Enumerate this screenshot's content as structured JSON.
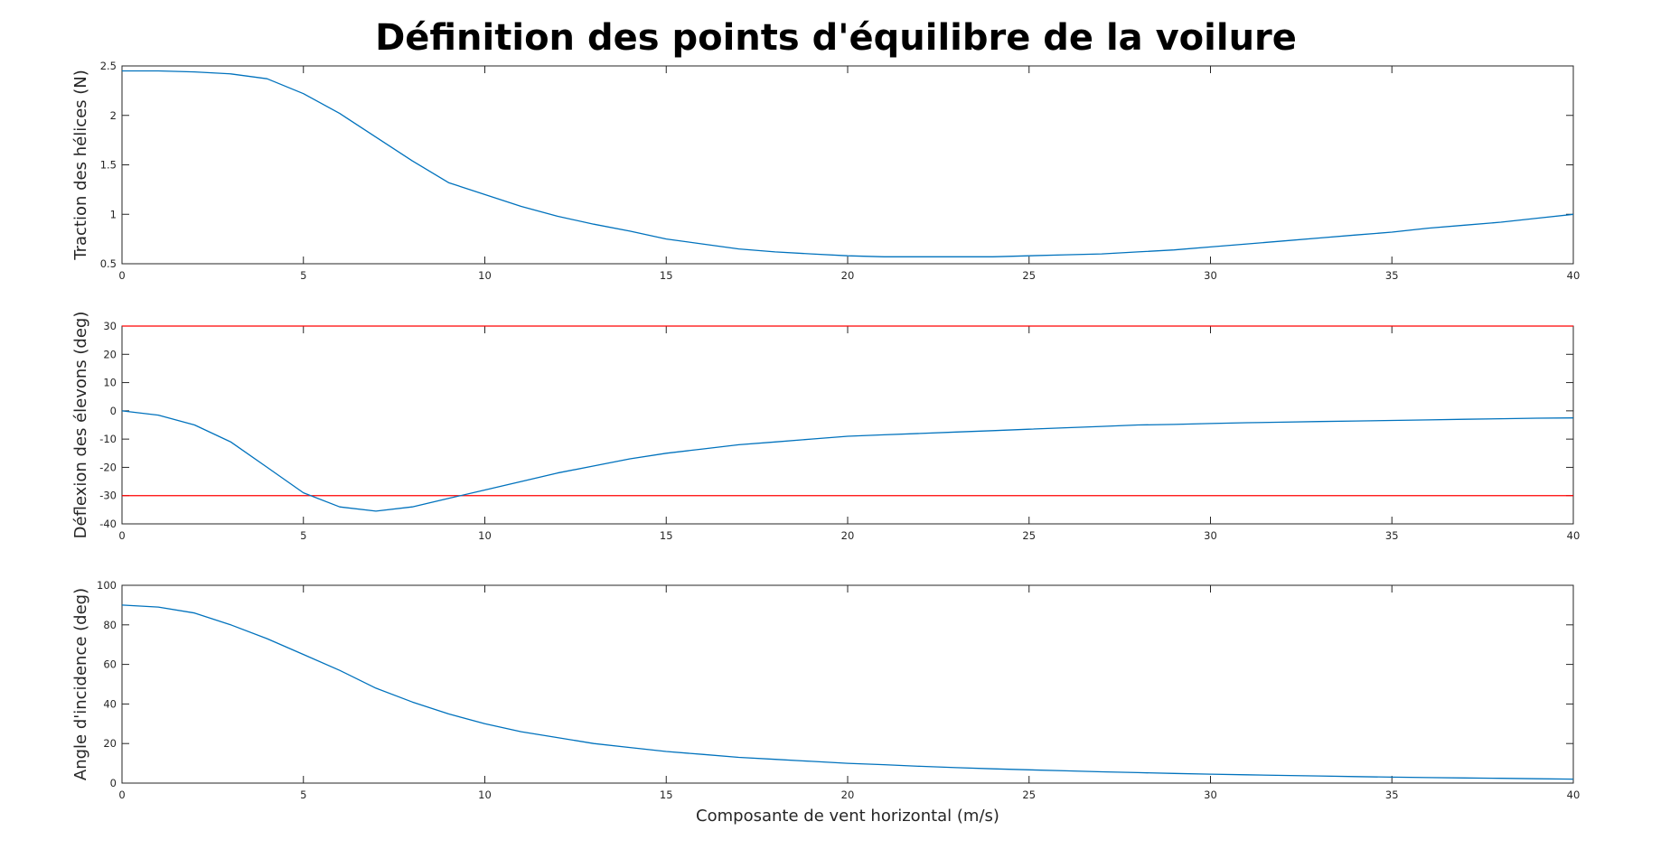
{
  "figure": {
    "title": "Définition des points d'équilibre de la voilure",
    "background": "#ffffff",
    "series_color": "#0072bd",
    "limit_color": "#ff0000",
    "axes_color": "#262626"
  },
  "chart_data": [
    {
      "type": "line",
      "title": "",
      "xlabel": "",
      "ylabel": "Traction des hélices (N)",
      "xlim": [
        0,
        40
      ],
      "ylim": [
        0.5,
        2.5
      ],
      "xticks": [
        0,
        5,
        10,
        15,
        20,
        25,
        30,
        35,
        40
      ],
      "yticks": [
        0.5,
        1,
        1.5,
        2,
        2.5
      ],
      "grid": false,
      "series": [
        {
          "x": [
            0,
            1,
            2,
            3,
            4,
            5,
            6,
            7,
            8,
            9,
            10,
            11,
            12,
            13,
            14,
            15,
            16,
            17,
            18,
            19,
            20,
            21,
            22,
            23,
            24,
            25,
            26,
            27,
            28,
            29,
            30,
            31,
            32,
            33,
            34,
            35,
            36,
            37,
            38,
            39,
            40
          ],
          "y": [
            2.45,
            2.45,
            2.44,
            2.42,
            2.37,
            2.22,
            2.02,
            1.78,
            1.54,
            1.32,
            1.2,
            1.08,
            0.98,
            0.9,
            0.83,
            0.75,
            0.7,
            0.65,
            0.62,
            0.6,
            0.58,
            0.57,
            0.57,
            0.57,
            0.57,
            0.58,
            0.59,
            0.6,
            0.62,
            0.64,
            0.67,
            0.7,
            0.73,
            0.76,
            0.79,
            0.82,
            0.86,
            0.89,
            0.92,
            0.96,
            1.0
          ]
        }
      ],
      "hlines": []
    },
    {
      "type": "line",
      "title": "",
      "xlabel": "",
      "ylabel": "Déflexion des élevons (deg)",
      "xlim": [
        0,
        40
      ],
      "ylim": [
        -40,
        30
      ],
      "xticks": [
        0,
        5,
        10,
        15,
        20,
        25,
        30,
        35,
        40
      ],
      "yticks": [
        -40,
        -30,
        -20,
        -10,
        0,
        10,
        20,
        30
      ],
      "grid": false,
      "series": [
        {
          "x": [
            0,
            1,
            2,
            3,
            4,
            5,
            6,
            7,
            8,
            9,
            10,
            11,
            12,
            13,
            14,
            15,
            16,
            17,
            18,
            19,
            20,
            21,
            22,
            23,
            24,
            25,
            26,
            27,
            28,
            29,
            30,
            31,
            32,
            33,
            34,
            35,
            36,
            37,
            38,
            39,
            40
          ],
          "y": [
            0,
            -1.5,
            -5,
            -11,
            -20,
            -29,
            -34,
            -35.5,
            -34,
            -31,
            -28,
            -25,
            -22,
            -19.5,
            -17,
            -15,
            -13.5,
            -12,
            -11,
            -10,
            -9,
            -8.5,
            -8,
            -7.5,
            -7,
            -6.5,
            -6,
            -5.5,
            -5,
            -4.8,
            -4.5,
            -4.2,
            -4,
            -3.8,
            -3.6,
            -3.4,
            -3.2,
            -3,
            -2.8,
            -2.6,
            -2.5
          ]
        }
      ],
      "hlines": [
        30,
        -30
      ]
    },
    {
      "type": "line",
      "title": "",
      "xlabel": "Composante de vent horizontal (m/s)",
      "ylabel": "Angle d'incidence (deg)",
      "xlim": [
        0,
        40
      ],
      "ylim": [
        0,
        100
      ],
      "xticks": [
        0,
        5,
        10,
        15,
        20,
        25,
        30,
        35,
        40
      ],
      "yticks": [
        0,
        20,
        40,
        60,
        80,
        100
      ],
      "grid": false,
      "series": [
        {
          "x": [
            0,
            1,
            2,
            3,
            4,
            5,
            6,
            7,
            8,
            9,
            10,
            11,
            12,
            13,
            14,
            15,
            16,
            17,
            18,
            19,
            20,
            21,
            22,
            23,
            24,
            25,
            26,
            27,
            28,
            29,
            30,
            31,
            32,
            33,
            34,
            35,
            36,
            37,
            38,
            39,
            40
          ],
          "y": [
            90,
            89,
            86,
            80,
            73,
            65,
            57,
            48,
            41,
            35,
            30,
            26,
            23,
            20,
            18,
            16,
            14.5,
            13,
            12,
            11,
            10,
            9.3,
            8.5,
            7.8,
            7.2,
            6.7,
            6.2,
            5.7,
            5.3,
            4.9,
            4.5,
            4.2,
            3.9,
            3.6,
            3.3,
            3,
            2.8,
            2.6,
            2.4,
            2.2,
            2
          ]
        }
      ],
      "hlines": []
    }
  ]
}
